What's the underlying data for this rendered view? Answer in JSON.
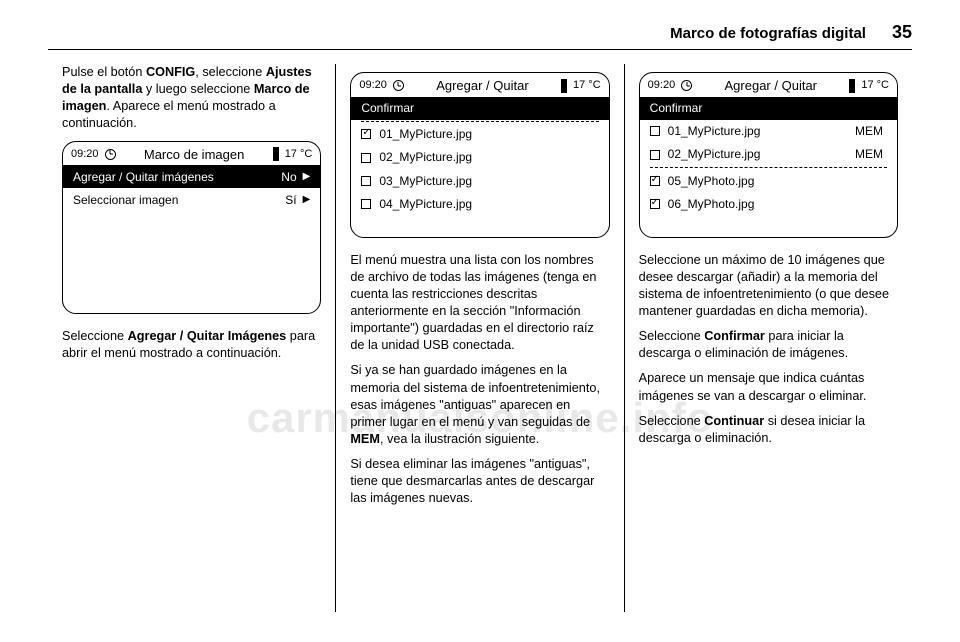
{
  "header": {
    "title": "Marco de fotografías digital",
    "page": "35"
  },
  "watermark": "carmanualsonline.info",
  "col1": {
    "p1_a": "Pulse el botón ",
    "p1_b": "CONFIG",
    "p1_c": ", seleccione ",
    "p1_d": "Ajustes de la pantalla",
    "p1_e": " y luego seleccione ",
    "p1_f": "Marco de imagen",
    "p1_g": ". Aparece el menú mostrado a continuación.",
    "ss": {
      "time": "09:20",
      "title": "Marco de imagen",
      "temp": "17 °C",
      "row1_label": "Agregar / Quitar imágenes",
      "row1_val": "No",
      "row2_label": "Seleccionar imagen",
      "row2_val": "Sí"
    },
    "p2_a": "Seleccione ",
    "p2_b": "Agregar / Quitar Imágenes",
    "p2_c": " para abrir el menú mostrado a continuación."
  },
  "col2": {
    "ss": {
      "time": "09:20",
      "title": "Agregar / Quitar",
      "temp": "17 °C",
      "confirm": "Confirmar",
      "items": [
        {
          "checked": true,
          "name": "01_MyPicture.jpg",
          "right": ""
        },
        {
          "checked": false,
          "name": "02_MyPicture.jpg",
          "right": ""
        },
        {
          "checked": false,
          "name": "03_MyPicture.jpg",
          "right": ""
        },
        {
          "checked": false,
          "name": "04_MyPicture.jpg",
          "right": ""
        }
      ]
    },
    "p1": "El menú muestra una lista con los nombres de archivo de todas las imágenes (tenga en cuenta las restricciones descritas anteriormente en la sección \"Información importante\") guardadas en el directorio raíz de la unidad USB conectada.",
    "p2_a": "Si ya se han guardado imágenes en la memoria del sistema de infoentretenimiento, esas imágenes \"antiguas\" aparecen en primer lugar en el menú y van seguidas de ",
    "p2_b": "MEM",
    "p2_c": ", vea la ilustración siguiente.",
    "p3": "Si desea eliminar las imágenes \"antiguas\", tiene que desmarcarlas antes de descargar las imágenes nuevas."
  },
  "col3": {
    "ss": {
      "time": "09:20",
      "title": "Agregar / Quitar",
      "temp": "17 °C",
      "confirm": "Confirmar",
      "items": [
        {
          "checked": false,
          "name": "01_MyPicture.jpg",
          "right": "MEM"
        },
        {
          "checked": false,
          "name": "02_MyPicture.jpg",
          "right": "MEM"
        },
        {
          "divider": true
        },
        {
          "checked": true,
          "name": "05_MyPhoto.jpg",
          "right": ""
        },
        {
          "checked": true,
          "name": "06_MyPhoto.jpg",
          "right": ""
        }
      ]
    },
    "p1": "Seleccione un máximo de 10 imágenes que desee descargar (añadir) a la memoria del sistema de infoentretenimiento (o que desee mantener guardadas en dicha memoria).",
    "p2_a": "Seleccione ",
    "p2_b": "Confirmar",
    "p2_c": " para iniciar la descarga o eliminación de imágenes.",
    "p3": "Aparece un mensaje que indica cuántas imágenes se van a descargar o eliminar.",
    "p4_a": "Seleccione ",
    "p4_b": "Continuar",
    "p4_c": " si desea iniciar la descarga o eliminación."
  }
}
